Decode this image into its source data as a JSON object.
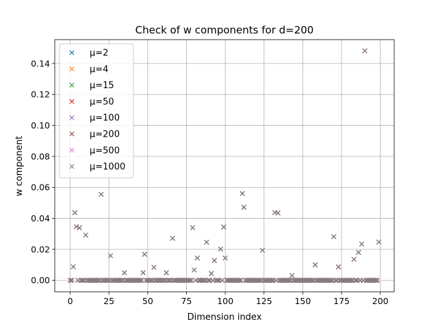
{
  "chart_data": {
    "type": "scatter",
    "title": "Check of w components for d=200",
    "xlabel": "Dimension index",
    "ylabel": "w component",
    "xlim": [
      -9.95,
      208.95
    ],
    "ylim": [
      -0.0074,
      0.1554
    ],
    "xticks": [
      0,
      25,
      50,
      75,
      100,
      125,
      150,
      175,
      200
    ],
    "yticks": [
      0.0,
      0.02,
      0.04,
      0.06,
      0.08,
      0.1,
      0.12,
      0.14
    ],
    "xtick_labels": [
      "0",
      "25",
      "50",
      "75",
      "100",
      "125",
      "150",
      "175",
      "200"
    ],
    "ytick_labels": [
      "0.00",
      "0.02",
      "0.04",
      "0.06",
      "0.08",
      "0.10",
      "0.12",
      "0.14"
    ],
    "grid": true,
    "marker": "x",
    "legend_position": "upper-left",
    "series": [
      {
        "name": "μ=2",
        "color": "#1f77b4"
      },
      {
        "name": "μ=4",
        "color": "#ff7f0e"
      },
      {
        "name": "μ=15",
        "color": "#2ca02c"
      },
      {
        "name": "μ=50",
        "color": "#d62728"
      },
      {
        "name": "μ=100",
        "color": "#9467bd"
      },
      {
        "name": "μ=200",
        "color": "#8c564b"
      },
      {
        "name": "μ=500",
        "color": "#e377c2"
      },
      {
        "name": "μ=1000",
        "color": "#7f7f7f"
      }
    ],
    "default_value": 0.0,
    "nonzero_points": [
      [
        2,
        0.0088
      ],
      [
        3,
        0.0437
      ],
      [
        4,
        0.0346
      ],
      [
        6,
        0.0339
      ],
      [
        10,
        0.0292
      ],
      [
        20,
        0.0555
      ],
      [
        26,
        0.0159
      ],
      [
        35,
        0.0049
      ],
      [
        47,
        0.0049
      ],
      [
        48,
        0.0168
      ],
      [
        54,
        0.0084
      ],
      [
        62,
        0.0049
      ],
      [
        66,
        0.0271
      ],
      [
        79,
        0.034
      ],
      [
        80,
        0.0067
      ],
      [
        82,
        0.0144
      ],
      [
        88,
        0.0246
      ],
      [
        91,
        0.0044
      ],
      [
        93,
        0.0128
      ],
      [
        97,
        0.0202
      ],
      [
        99,
        0.0344
      ],
      [
        100,
        0.0144
      ],
      [
        111,
        0.0561
      ],
      [
        112,
        0.0472
      ],
      [
        124,
        0.0194
      ],
      [
        132,
        0.0438
      ],
      [
        134,
        0.0435
      ],
      [
        143,
        0.0031
      ],
      [
        158,
        0.01
      ],
      [
        170,
        0.0282
      ],
      [
        173,
        0.0087
      ],
      [
        183,
        0.0136
      ],
      [
        186,
        0.018
      ],
      [
        188,
        0.0234
      ],
      [
        190,
        0.1482
      ],
      [
        199,
        0.0247
      ]
    ]
  }
}
